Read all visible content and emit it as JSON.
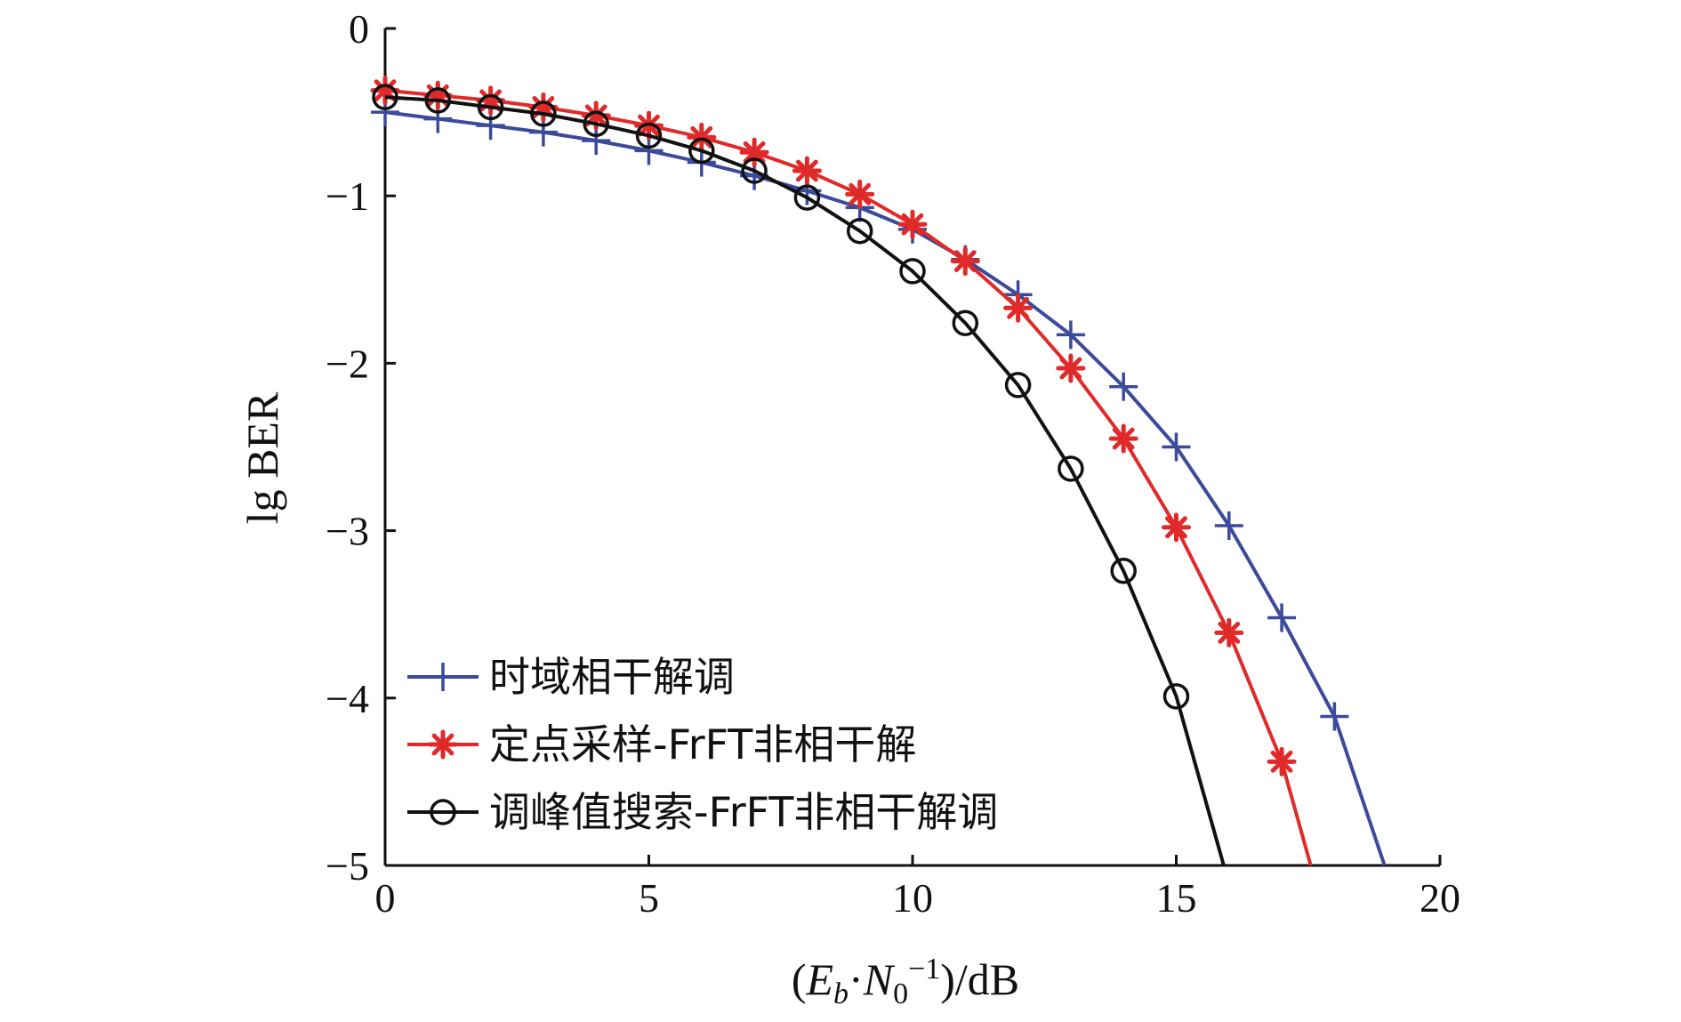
{
  "chart_data": {
    "type": "line",
    "xlabel": {
      "open": "(",
      "E": "E",
      "E_sub": "b",
      "dot": "·",
      "N": "N",
      "N_sub": "0",
      "N_sup": "−1",
      "close": ")/dB"
    },
    "ylabel": "lg BER",
    "xlim": [
      0,
      20
    ],
    "ylim": [
      -5,
      0
    ],
    "xticks": [
      0,
      5,
      10,
      15,
      20
    ],
    "xtick_labels": [
      "0",
      "5",
      "10",
      "15",
      "20"
    ],
    "yticks": [
      0,
      -1,
      -2,
      -3,
      -4,
      -5
    ],
    "ytick_labels": [
      "0",
      "−1",
      "−2",
      "−3",
      "−4",
      "−5"
    ],
    "grid": false,
    "legend_position": "bottom-left",
    "series": [
      {
        "name": "时域相干解调",
        "color": "#3b4a9a",
        "marker": "plus",
        "x": [
          0,
          1,
          2,
          3,
          4,
          5,
          6,
          7,
          8,
          9,
          10,
          11,
          12,
          13,
          14,
          15,
          16,
          17,
          18
        ],
        "y": [
          -0.5,
          -0.54,
          -0.58,
          -0.62,
          -0.67,
          -0.73,
          -0.8,
          -0.88,
          -0.97,
          -1.07,
          -1.2,
          -1.38,
          -1.59,
          -1.83,
          -2.14,
          -2.5,
          -2.97,
          -3.52,
          -4.11
        ],
        "tail_x": [
          18.95
        ],
        "tail_y": [
          -5
        ]
      },
      {
        "name": "定点采样-FrFT非相干解",
        "color": "#e02a2a",
        "marker": "asterisk",
        "x": [
          0,
          1,
          2,
          3,
          4,
          5,
          6,
          7,
          8,
          9,
          10,
          11,
          12,
          13,
          14,
          15,
          16,
          17
        ],
        "y": [
          -0.37,
          -0.4,
          -0.43,
          -0.47,
          -0.52,
          -0.58,
          -0.65,
          -0.74,
          -0.85,
          -0.99,
          -1.17,
          -1.39,
          -1.67,
          -2.03,
          -2.45,
          -2.98,
          -3.61,
          -4.38
        ],
        "tail_x": [
          17.55
        ],
        "tail_y": [
          -5
        ]
      },
      {
        "name": "调峰值搜索-FrFT非相干解调",
        "color": "#111111",
        "marker": "circle",
        "x": [
          0,
          1,
          2,
          3,
          4,
          5,
          6,
          7,
          8,
          9,
          10,
          11,
          12,
          13,
          14,
          15
        ],
        "y": [
          -0.41,
          -0.43,
          -0.47,
          -0.51,
          -0.57,
          -0.64,
          -0.73,
          -0.85,
          -1.01,
          -1.21,
          -1.45,
          -1.76,
          -2.13,
          -2.63,
          -3.24,
          -3.99
        ],
        "tail_x": [
          15.9
        ],
        "tail_y": [
          -5
        ]
      }
    ]
  }
}
